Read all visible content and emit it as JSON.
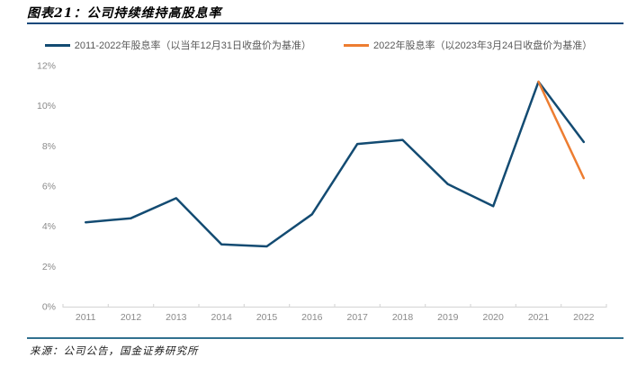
{
  "header": {
    "title": "图表21：公司持续维持高股息率"
  },
  "footer": {
    "source": "来源：公司公告，国金证券研究所"
  },
  "colors": {
    "rule_top": "#17497B",
    "rule_bottom": "#31708F",
    "axis_line": "#D9D9D9",
    "axis_label": "#8A8A8A",
    "legend_text": "#595959",
    "series_blue": "#134B72",
    "series_orange": "#ED7D31"
  },
  "chart_data": {
    "type": "line",
    "title": "",
    "xlabel": "",
    "ylabel": "",
    "categories": [
      "2011",
      "2012",
      "2013",
      "2014",
      "2015",
      "2016",
      "2017",
      "2018",
      "2019",
      "2020",
      "2021",
      "2022"
    ],
    "series": [
      {
        "name": "2011-2022年股息率（以当年12月31日收盘价为基准）",
        "color": "#134B72",
        "values": [
          4.2,
          4.4,
          5.4,
          3.1,
          3.0,
          4.6,
          8.1,
          8.3,
          6.1,
          5.0,
          11.2,
          8.2
        ]
      },
      {
        "name": "2022年股息率（以2023年3月24日收盘价为基准）",
        "color": "#ED7D31",
        "values": [
          null,
          null,
          null,
          null,
          null,
          null,
          null,
          null,
          null,
          null,
          11.2,
          6.4
        ]
      }
    ],
    "ylim": [
      0,
      12
    ],
    "ytick_labels": [
      "0%",
      "2%",
      "4%",
      "6%",
      "8%",
      "10%",
      "12%"
    ],
    "grid": false,
    "legend_position": "top"
  }
}
